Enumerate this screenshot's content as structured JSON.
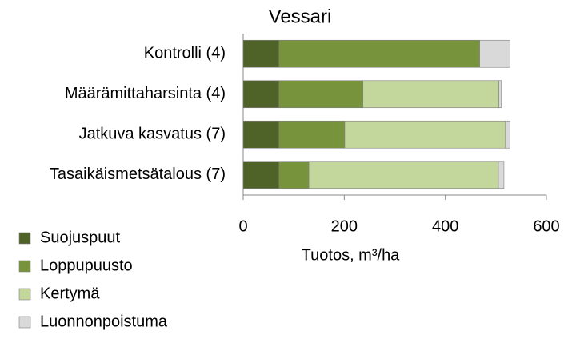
{
  "chart_data": {
    "type": "stacked-barh",
    "title": "Vessari",
    "categories": [
      "Kontrolli (4)",
      "Määrämittaharsinta (4)",
      "Jatkuva kasvatus (7)",
      "Tasaikäismetsätalous (7)"
    ],
    "series": [
      {
        "name": "Suojuspuut",
        "color": "#4f6228",
        "values": [
          71,
          71,
          71,
          71
        ]
      },
      {
        "name": "Loppupuusto",
        "color": "#77933c",
        "values": [
          397,
          166,
          130,
          59
        ]
      },
      {
        "name": "Kertymä",
        "color": "#c3d69b",
        "values": [
          0,
          269,
          318,
          375
        ]
      },
      {
        "name": "Luonnonpoistuma",
        "color": "#d9d9d9",
        "values": [
          60,
          5,
          9,
          11
        ]
      }
    ],
    "x_label": "Tuotos, m³/ha",
    "xlim": [
      0,
      600
    ],
    "xticks": [
      0,
      200,
      400,
      600
    ],
    "legend": "bottom-left"
  }
}
